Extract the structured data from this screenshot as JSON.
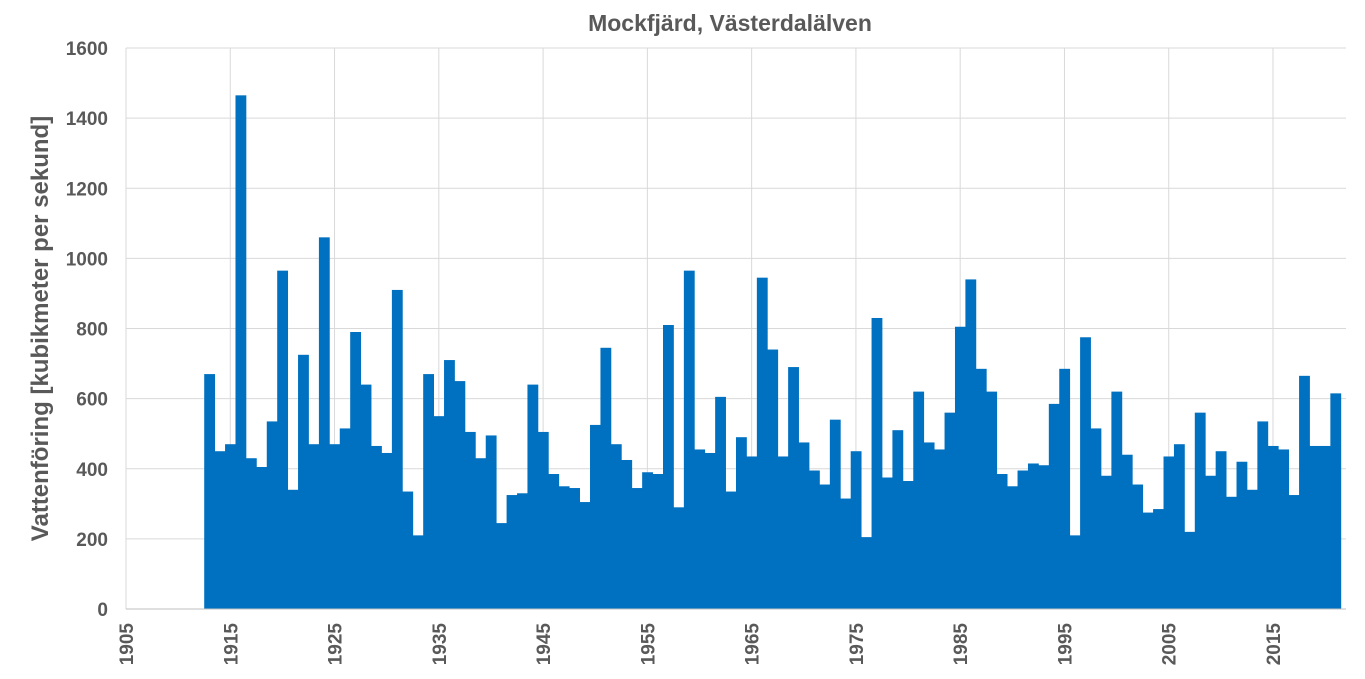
{
  "chart_data": {
    "type": "bar",
    "title": "Mockfjärd, Västerdalälven",
    "xlabel": "",
    "ylabel": "Vattenföring [kubikmeter per sekund]",
    "ylim": [
      0,
      1600
    ],
    "yticks": [
      0,
      200,
      400,
      600,
      800,
      1000,
      1200,
      1400,
      1600
    ],
    "xlim": [
      1905,
      2022
    ],
    "xticks": [
      1905,
      1915,
      1925,
      1935,
      1945,
      1955,
      1965,
      1975,
      1985,
      1995,
      2005,
      2015
    ],
    "grid": true,
    "color": "#0070c0",
    "x": [
      1913,
      1914,
      1915,
      1916,
      1917,
      1918,
      1919,
      1920,
      1921,
      1922,
      1923,
      1924,
      1925,
      1926,
      1927,
      1928,
      1929,
      1930,
      1931,
      1932,
      1933,
      1934,
      1935,
      1936,
      1937,
      1938,
      1939,
      1940,
      1941,
      1942,
      1943,
      1944,
      1945,
      1946,
      1947,
      1948,
      1949,
      1950,
      1951,
      1952,
      1953,
      1954,
      1955,
      1956,
      1957,
      1958,
      1959,
      1960,
      1961,
      1962,
      1963,
      1964,
      1965,
      1966,
      1967,
      1968,
      1969,
      1970,
      1971,
      1972,
      1973,
      1974,
      1975,
      1976,
      1977,
      1978,
      1979,
      1980,
      1981,
      1982,
      1983,
      1984,
      1985,
      1986,
      1987,
      1988,
      1989,
      1990,
      1991,
      1992,
      1993,
      1994,
      1995,
      1996,
      1997,
      1998,
      1999,
      2000,
      2001,
      2002,
      2003,
      2004,
      2005,
      2006,
      2007,
      2008,
      2009,
      2010,
      2011,
      2012,
      2013,
      2014,
      2015,
      2016,
      2017,
      2018,
      2019,
      2020,
      2021
    ],
    "values": [
      670,
      450,
      470,
      1465,
      430,
      405,
      535,
      965,
      340,
      725,
      470,
      1060,
      470,
      515,
      790,
      640,
      465,
      445,
      910,
      335,
      210,
      670,
      550,
      710,
      650,
      505,
      430,
      495,
      245,
      325,
      330,
      640,
      505,
      385,
      350,
      345,
      305,
      525,
      745,
      470,
      425,
      345,
      390,
      385,
      810,
      290,
      965,
      455,
      445,
      605,
      335,
      490,
      435,
      945,
      740,
      435,
      690,
      475,
      395,
      355,
      540,
      315,
      450,
      205,
      830,
      375,
      510,
      365,
      620,
      475,
      455,
      560,
      805,
      940,
      685,
      620,
      385,
      350,
      395,
      415,
      410,
      585,
      685,
      210,
      775,
      515,
      380,
      620,
      440,
      355,
      275,
      285,
      435,
      470,
      220,
      560,
      380,
      450,
      320,
      420,
      340,
      535,
      465,
      455,
      325,
      665,
      465,
      465,
      615
    ]
  }
}
